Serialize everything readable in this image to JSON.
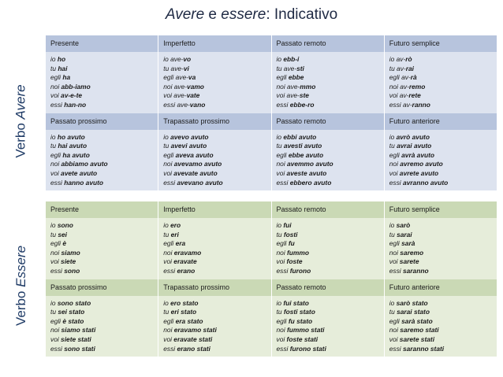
{
  "title": {
    "part1": "Avere",
    "part2": " e ",
    "part3": "essere",
    "part4": ": Indicativo"
  },
  "side_labels": {
    "avere": {
      "prefix": "Verbo ",
      "verb": "Avere"
    },
    "essere": {
      "prefix": "Verbo ",
      "verb": "Essere"
    }
  },
  "sections": [
    {
      "name": "avere",
      "blocks": [
        {
          "headers": [
            "Presente",
            "Imperfetto",
            "Passato remoto",
            "Futuro semplice"
          ],
          "columns": [
            [
              [
                "io ",
                "ho"
              ],
              [
                "tu ",
                "hai"
              ],
              [
                "egli ",
                "ha"
              ],
              [
                "noi ",
                "abb-iamo"
              ],
              [
                "voi ",
                "av-e-te"
              ],
              [
                "essi ",
                "han-no"
              ]
            ],
            [
              [
                "io ave-",
                "vo"
              ],
              [
                "tu ave-",
                "vi"
              ],
              [
                "egli ave-",
                "va"
              ],
              [
                "noi ave-",
                "vamo"
              ],
              [
                "voi ave-",
                "vate"
              ],
              [
                "essi ave-",
                "vano"
              ]
            ],
            [
              [
                "io ",
                "ebb-i"
              ],
              [
                "tu ave-",
                "sti"
              ],
              [
                "egli ",
                "ebbe"
              ],
              [
                "noi ave-",
                "mmo"
              ],
              [
                "voi ave-",
                "ste"
              ],
              [
                "essi ",
                "ebbe-ro"
              ]
            ],
            [
              [
                "io av-",
                "rò"
              ],
              [
                "tu av-",
                "rai"
              ],
              [
                "egli av-",
                "rà"
              ],
              [
                "noi av-",
                "remo"
              ],
              [
                "voi av-",
                "rete"
              ],
              [
                "essi av-",
                "ranno"
              ]
            ]
          ]
        },
        {
          "headers": [
            "Passato prossimo",
            "Trapassato prossimo",
            "Passato remoto",
            "Futuro anteriore"
          ],
          "columns": [
            [
              [
                "io ",
                "ho avuto"
              ],
              [
                "tu ",
                "hai avuto"
              ],
              [
                "egli ",
                "ha avuto"
              ],
              [
                "noi ",
                "abbiamo avuto"
              ],
              [
                "voi ",
                "avete avuto"
              ],
              [
                "essi ",
                "hanno avuto"
              ]
            ],
            [
              [
                "io ",
                "avevo avuto"
              ],
              [
                "tu ",
                "avevi avuto"
              ],
              [
                "egli ",
                "aveva avuto"
              ],
              [
                "noi ",
                "avevamo avuto"
              ],
              [
                "voi ",
                "avevate avuto"
              ],
              [
                "essi ",
                "avevano avuto"
              ]
            ],
            [
              [
                "io ",
                "ebbi avuto"
              ],
              [
                "tu ",
                "avesti avuto"
              ],
              [
                "egli ",
                "ebbe avuto"
              ],
              [
                "noi ",
                "avemmo avuto"
              ],
              [
                "voi ",
                "aveste avuto"
              ],
              [
                "essi ",
                "ebbero avuto"
              ]
            ],
            [
              [
                "io ",
                "avrò avuto"
              ],
              [
                "tu ",
                "avrai avuto"
              ],
              [
                "egli ",
                "avrà avuto"
              ],
              [
                "noi ",
                "avremo avuto"
              ],
              [
                "voi ",
                "avrete avuto"
              ],
              [
                "essi ",
                "avranno avuto"
              ]
            ]
          ]
        }
      ]
    },
    {
      "name": "essere",
      "blocks": [
        {
          "headers": [
            "Presente",
            "Imperfetto",
            "Passato remoto",
            "Futuro semplice"
          ],
          "columns": [
            [
              [
                "io ",
                "sono"
              ],
              [
                "tu ",
                "sei"
              ],
              [
                "egli ",
                "è"
              ],
              [
                "noi ",
                "siamo"
              ],
              [
                "voi ",
                "siete"
              ],
              [
                "essi ",
                "sono"
              ]
            ],
            [
              [
                "io ",
                "ero"
              ],
              [
                "tu ",
                "eri"
              ],
              [
                "egli ",
                "era"
              ],
              [
                "noi ",
                "eravamo"
              ],
              [
                "voi ",
                "eravate"
              ],
              [
                "essi ",
                "erano"
              ]
            ],
            [
              [
                "io ",
                "fui"
              ],
              [
                "tu ",
                "fosti"
              ],
              [
                "egli ",
                "fu"
              ],
              [
                "noi ",
                "fummo"
              ],
              [
                "voi ",
                "foste"
              ],
              [
                "essi ",
                "furono"
              ]
            ],
            [
              [
                "io ",
                "sarò"
              ],
              [
                "tu ",
                "sarai"
              ],
              [
                "egli ",
                "sarà"
              ],
              [
                "noi ",
                "saremo"
              ],
              [
                "voi ",
                "sarete"
              ],
              [
                "essi ",
                "saranno"
              ]
            ]
          ]
        },
        {
          "headers": [
            "Passato prossimo",
            "Trapassato prossimo",
            "Passato remoto",
            "Futuro anteriore"
          ],
          "columns": [
            [
              [
                "io ",
                "sono stato"
              ],
              [
                "tu ",
                "sei stato"
              ],
              [
                "egli ",
                "è stato"
              ],
              [
                "noi ",
                "siamo stati"
              ],
              [
                "voi ",
                "siete stati"
              ],
              [
                "essi ",
                "sono stati"
              ]
            ],
            [
              [
                "io ",
                "ero stato"
              ],
              [
                "tu ",
                "eri stato"
              ],
              [
                "egli ",
                "era stato"
              ],
              [
                "noi ",
                "eravamo stati"
              ],
              [
                "voi ",
                "eravate stati"
              ],
              [
                "essi ",
                "erano stati"
              ]
            ],
            [
              [
                "io ",
                "fui stato"
              ],
              [
                "tu ",
                "fosti stato"
              ],
              [
                "egli ",
                "fu stato"
              ],
              [
                "noi ",
                "fummo stati"
              ],
              [
                "voi ",
                "foste stati"
              ],
              [
                "essi ",
                "furono stati"
              ]
            ],
            [
              [
                "io ",
                "sarò stato"
              ],
              [
                "tu ",
                "sarai stato"
              ],
              [
                "egli ",
                "sarà stato"
              ],
              [
                "noi ",
                "saremo stati"
              ],
              [
                "voi ",
                "sarete stati"
              ],
              [
                "essi ",
                "saranno stati"
              ]
            ]
          ]
        }
      ]
    }
  ]
}
